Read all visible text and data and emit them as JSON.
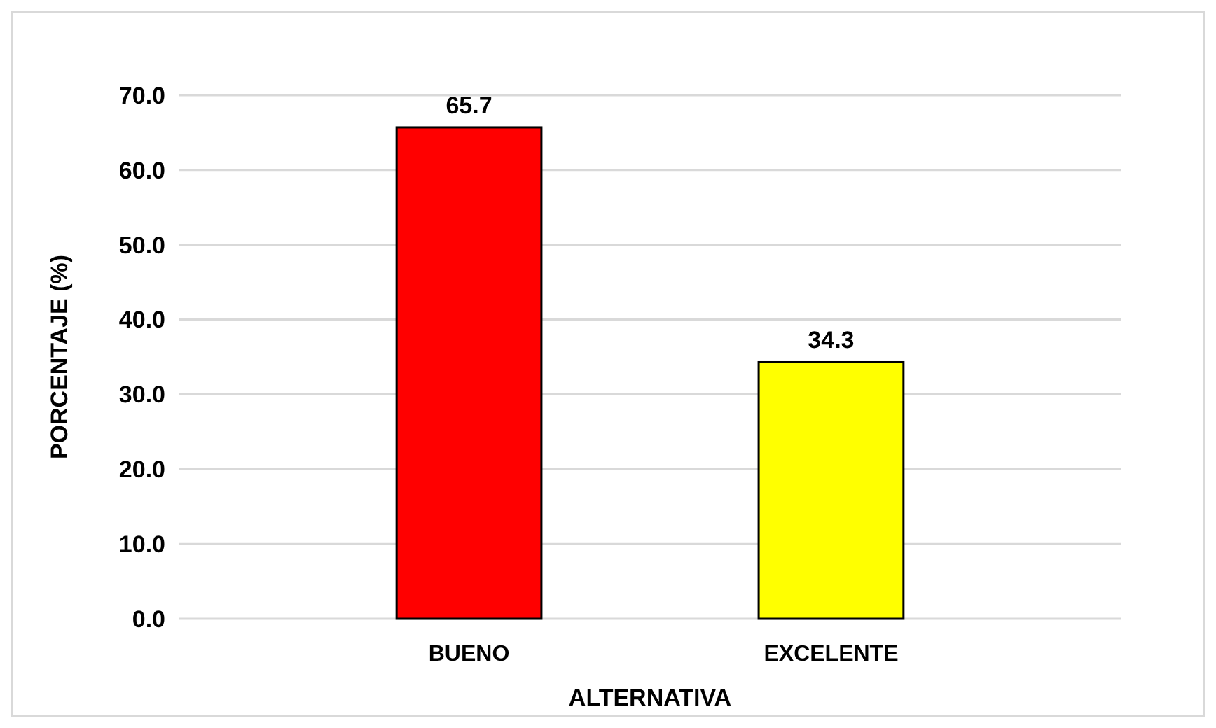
{
  "chart_data": {
    "type": "bar",
    "xlabel": "ALTERNATIVA",
    "ylabel": "PORCENTAJE (%)",
    "categories": [
      "BUENO",
      "EXCELENTE"
    ],
    "values": [
      65.7,
      34.3
    ],
    "colors": [
      "#ff0000",
      "#ffff00"
    ],
    "ylim": [
      0,
      70
    ],
    "yticks": [
      {
        "value": 0,
        "label": "0.0"
      },
      {
        "value": 10,
        "label": "10.0"
      },
      {
        "value": 20,
        "label": "20.0"
      },
      {
        "value": 30,
        "label": "30.0"
      },
      {
        "value": 40,
        "label": "40.0"
      },
      {
        "value": 50,
        "label": "50.0"
      },
      {
        "value": 60,
        "label": "60.0"
      },
      {
        "value": 70,
        "label": "70.0"
      }
    ],
    "grid": "y",
    "data_labels": true
  }
}
